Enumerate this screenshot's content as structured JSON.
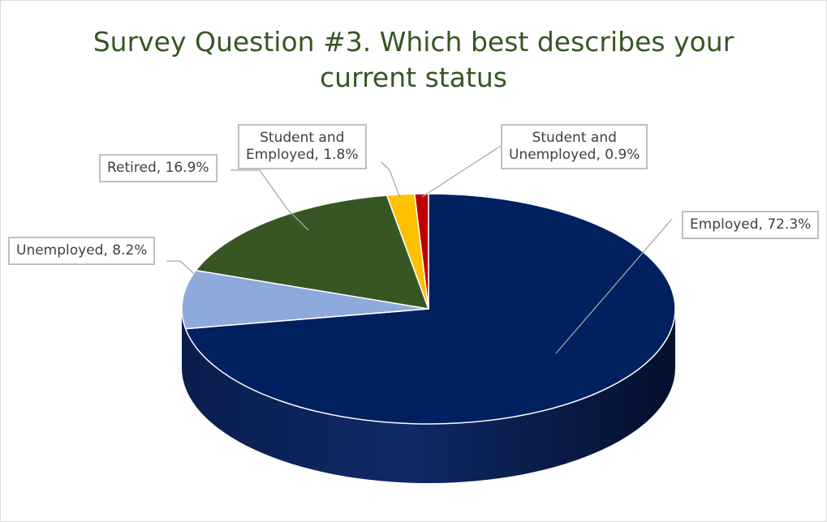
{
  "chart_data": {
    "type": "pie",
    "title_lines": [
      "Survey Question #3. Which best describes your",
      "current status"
    ],
    "slices": [
      {
        "label": "Employed",
        "value": 72.3,
        "color": "#002060",
        "data_label": "Employed, 72.3%"
      },
      {
        "label": "Unemployed",
        "value": 8.2,
        "color": "#8EA9DB",
        "data_label": "Unemployed, 8.2%"
      },
      {
        "label": "Retired",
        "value": 16.9,
        "color": "#375623",
        "data_label": "Retired, 16.9%"
      },
      {
        "label": "Student and Employed",
        "value": 1.8,
        "color": "#FFC000",
        "data_label_lines": [
          "Student and",
          "Employed, 1.8%"
        ]
      },
      {
        "label": "Student and Unemployed",
        "value": 0.9,
        "color": "#C00000",
        "data_label_lines": [
          "Student and",
          "Unemployed, 0.9%"
        ]
      }
    ],
    "style": "3d-pie",
    "legend": "none"
  }
}
